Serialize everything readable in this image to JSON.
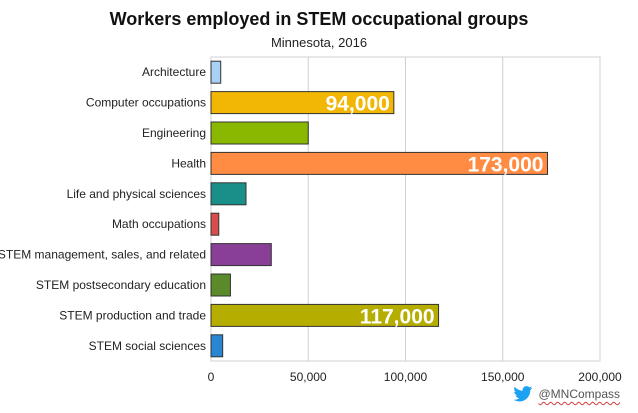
{
  "header": {
    "title": "Workers employed in STEM occupational groups",
    "subtitle": "Minnesota, 2016"
  },
  "credit": {
    "handle": "@MNCompass",
    "icon": "twitter-bird-icon",
    "icon_color": "#1da1f2"
  },
  "chart_data": {
    "type": "bar",
    "orientation": "horizontal",
    "categories": [
      "Architecture",
      "Computer occupations",
      "Engineering",
      "Health",
      "Life and physical sciences",
      "Math occupations",
      "STEM management, sales, and related",
      "STEM postsecondary education",
      "STEM production and trade",
      "STEM social sciences"
    ],
    "values": [
      5000,
      94000,
      50000,
      173000,
      18000,
      4000,
      31000,
      10000,
      117000,
      6000
    ],
    "colors": [
      "#a9d1f5",
      "#f2b705",
      "#8ab800",
      "#ff8c42",
      "#1a8f8a",
      "#d94c4c",
      "#8a3f96",
      "#5a8a2a",
      "#b5ad00",
      "#2b86d1"
    ],
    "data_labels": [
      "",
      "94,000",
      "",
      "173,000",
      "",
      "",
      "",
      "",
      "117,000",
      ""
    ],
    "xlim": [
      0,
      200000
    ],
    "x_ticks": [
      0,
      50000,
      100000,
      150000,
      200000
    ],
    "x_tick_labels": [
      "0",
      "50,000",
      "100,000",
      "150,000",
      "200,000"
    ],
    "grid": true,
    "legend": "none",
    "xlabel": "",
    "ylabel": ""
  }
}
